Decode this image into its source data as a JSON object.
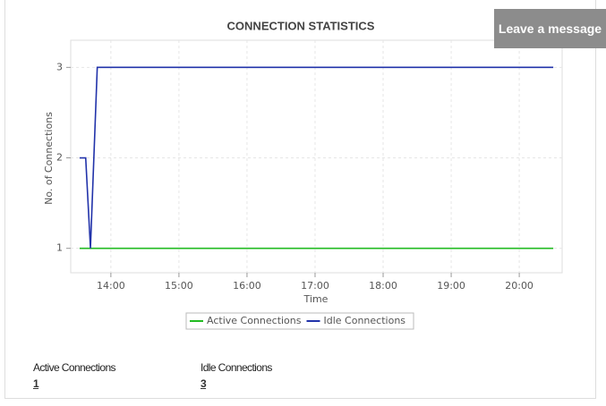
{
  "chart_data": {
    "type": "line",
    "title": "CONNECTION STATISTICS",
    "x_label": "Time",
    "y_label": "No. of Connections",
    "xlim": [
      13.41,
      20.63
    ],
    "xticks": [
      {
        "value": 14,
        "label": "14:00"
      },
      {
        "value": 15,
        "label": "15:00"
      },
      {
        "value": 16,
        "label": "16:00"
      },
      {
        "value": 17,
        "label": "17:00"
      },
      {
        "value": 18,
        "label": "18:00"
      },
      {
        "value": 19,
        "label": "19:00"
      },
      {
        "value": 20,
        "label": "20:00"
      }
    ],
    "ylim": [
      0.73,
      3.3
    ],
    "yticks": [
      1,
      2,
      3
    ],
    "grid": true,
    "series": [
      {
        "name": "Active Connections",
        "color": "#22bb22",
        "x": [
          13.54,
          20.5
        ],
        "values": [
          1,
          1
        ]
      },
      {
        "name": "Idle Connections",
        "color": "#2233aa",
        "x": [
          13.54,
          13.63,
          13.7,
          13.8,
          20.5
        ],
        "values": [
          2,
          2,
          1,
          3,
          3
        ]
      }
    ]
  },
  "widget": {
    "button": "Leave a message",
    "summary": [
      {
        "label": "Active Connections",
        "value": 1
      },
      {
        "label": "Idle Connections",
        "value": 3
      }
    ]
  }
}
